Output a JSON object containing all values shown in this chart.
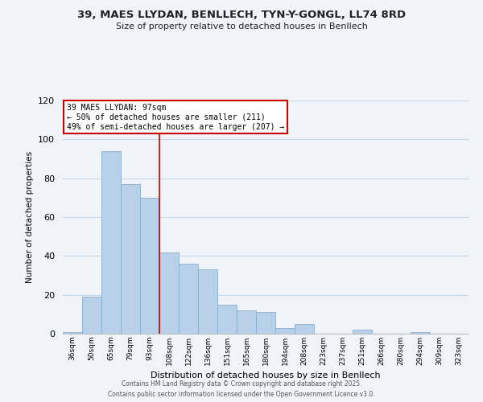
{
  "title": "39, MAES LLYDAN, BENLLECH, TYN-Y-GONGL, LL74 8RD",
  "subtitle": "Size of property relative to detached houses in Benllech",
  "xlabel": "Distribution of detached houses by size in Benllech",
  "ylabel": "Number of detached properties",
  "bar_color": "#b8d0e8",
  "bar_edge_color": "#88aece",
  "bin_labels": [
    "36sqm",
    "50sqm",
    "65sqm",
    "79sqm",
    "93sqm",
    "108sqm",
    "122sqm",
    "136sqm",
    "151sqm",
    "165sqm",
    "180sqm",
    "194sqm",
    "208sqm",
    "223sqm",
    "237sqm",
    "251sqm",
    "266sqm",
    "280sqm",
    "294sqm",
    "309sqm",
    "323sqm"
  ],
  "bar_heights": [
    1,
    19,
    94,
    77,
    70,
    42,
    36,
    33,
    15,
    12,
    11,
    3,
    5,
    0,
    0,
    2,
    0,
    0,
    1,
    0,
    0
  ],
  "ylim": [
    0,
    120
  ],
  "yticks": [
    0,
    20,
    40,
    60,
    80,
    100,
    120
  ],
  "vline_x": 4.5,
  "vline_color": "#cc0000",
  "annotation_title": "39 MAES LLYDAN: 97sqm",
  "annotation_line1": "← 50% of detached houses are smaller (211)",
  "annotation_line2": "49% of semi-detached houses are larger (207) →",
  "annotation_box_color": "#ffffff",
  "annotation_box_edge": "#cc0000",
  "footer_line1": "Contains HM Land Registry data © Crown copyright and database right 2025.",
  "footer_line2": "Contains public sector information licensed under the Open Government Licence v3.0.",
  "background_color": "#f0f4f8",
  "grid_color": "#c8d8ec"
}
